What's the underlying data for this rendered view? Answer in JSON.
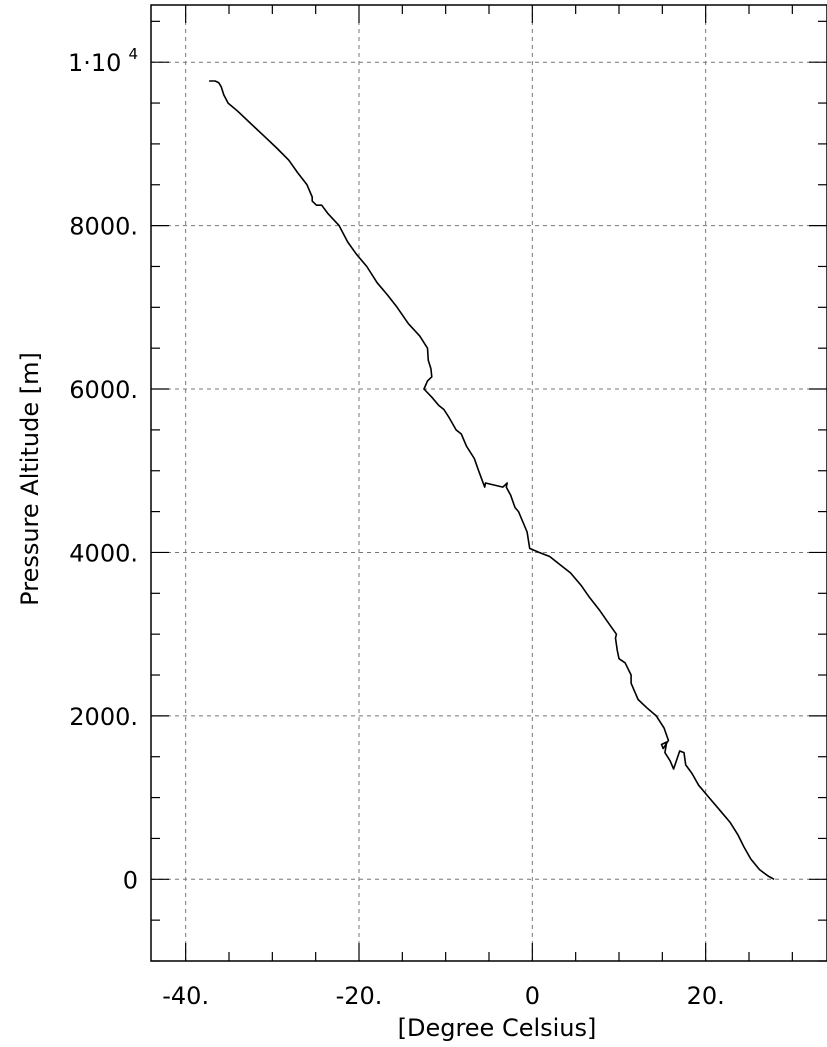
{
  "chart_data": {
    "type": "line",
    "xlabel": "[Degree Celsius]",
    "ylabel": "Pressure Altitude [m]",
    "xlim": [
      -44,
      34
    ],
    "ylim": [
      -1000,
      10700
    ],
    "grid": true,
    "x_ticks": [
      {
        "value": -40,
        "label": "-40."
      },
      {
        "value": -20,
        "label": "-20."
      },
      {
        "value": 0,
        "label": "0"
      },
      {
        "value": 20,
        "label": "20."
      }
    ],
    "y_ticks": [
      {
        "value": 0,
        "label": "0"
      },
      {
        "value": 2000,
        "label": "2000."
      },
      {
        "value": 4000,
        "label": "4000."
      },
      {
        "value": 6000,
        "label": "6000."
      },
      {
        "value": 8000,
        "label": "8000."
      },
      {
        "value": 10000,
        "label": "1·10",
        "exponent": "4"
      }
    ],
    "series": [
      {
        "x": [
          27.9,
          27.2,
          26.2,
          25.2,
          24.4,
          23.7,
          22.8,
          21.6,
          20.4,
          19.2,
          18.4,
          17.7,
          17.5,
          17.0,
          16.3,
          15.9,
          15.3,
          15.5,
          14.9,
          15.1,
          15.7,
          15.2,
          14.3,
          13.2,
          12.2,
          11.8,
          11.4,
          11.4,
          10.7,
          10.0,
          9.8,
          9.6,
          9.7,
          8.7,
          7.7,
          6.6,
          5.6,
          4.4,
          3.2,
          2.0,
          0.8,
          -0.3,
          -0.6,
          -1.6,
          -2.0,
          -2.5,
          -3.0,
          -2.9,
          -3.0,
          -3.4,
          -5.4,
          -5.5,
          -6.2,
          -6.7,
          -7.6,
          -8.2,
          -8.8,
          -9.6,
          -10.2,
          -10.8,
          -11.6,
          -12.5,
          -12.1,
          -11.6,
          -11.7,
          -12.0,
          -12.1,
          -13.0,
          -14.3,
          -15.6,
          -16.7,
          -17.9,
          -19.1,
          -20.3,
          -21.3,
          -22.3,
          -23.6,
          -24.3,
          -24.9,
          -25.4,
          -25.4,
          -26.0,
          -27.1,
          -28.1,
          -29.5,
          -31.0,
          -32.5,
          -34.0,
          -35.1,
          -35.6,
          -35.9,
          -36.2,
          -36.6,
          -37.3
        ],
        "y": [
          0,
          40,
          120,
          250,
          400,
          550,
          700,
          850,
          1000,
          1150,
          1300,
          1400,
          1550,
          1570,
          1350,
          1450,
          1550,
          1680,
          1650,
          1600,
          1700,
          1850,
          2000,
          2100,
          2200,
          2300,
          2400,
          2500,
          2650,
          2700,
          2800,
          2950,
          3000,
          3150,
          3300,
          3450,
          3600,
          3750,
          3850,
          3950,
          4000,
          4050,
          4250,
          4500,
          4550,
          4700,
          4800,
          4850,
          4840,
          4800,
          4850,
          4800,
          5000,
          5150,
          5300,
          5450,
          5500,
          5650,
          5750,
          5800,
          5900,
          6000,
          6100,
          6150,
          6250,
          6350,
          6500,
          6650,
          6800,
          7000,
          7150,
          7300,
          7500,
          7650,
          7800,
          8000,
          8150,
          8250,
          8250,
          8300,
          8350,
          8500,
          8650,
          8800,
          8950,
          9100,
          9250,
          9400,
          9500,
          9600,
          9700,
          9750,
          9770,
          9770
        ]
      }
    ]
  }
}
